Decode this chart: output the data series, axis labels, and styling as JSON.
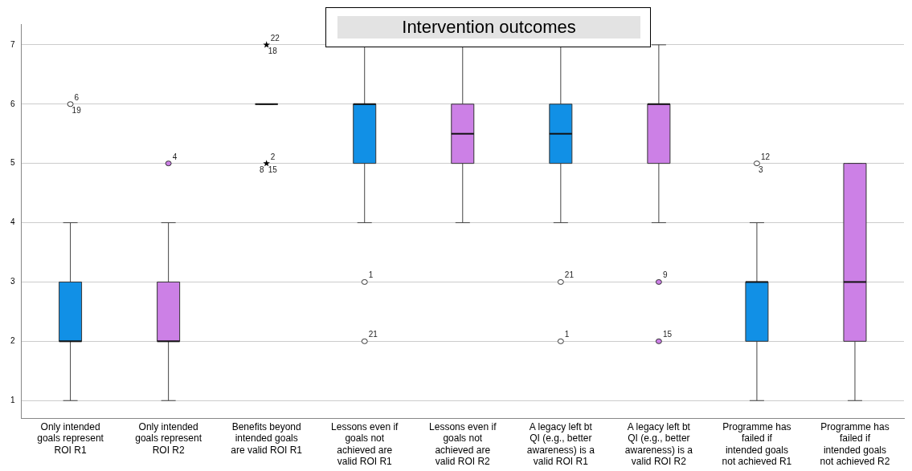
{
  "chart_data": {
    "type": "box",
    "title": "Intervention outcomes",
    "categories": [
      "Only intended goals represent ROI R1",
      "Only intended goals represent ROI R2",
      "Benefits beyond intended goals are valid ROI R1",
      "Lessons even if goals not achieved are valid ROI R1",
      "Lessons even if goals not achieved are valid ROI R2",
      "A legacy left bt QI (e.g., better awareness) is a valid ROI R1",
      "A legacy left bt QI (e.g., better awareness) is a valid ROI R2",
      "Programme has failed if intended goals not achieved R1",
      "Programme has failed if intended goals not achieved R2"
    ],
    "colors": [
      "#1190e6",
      "#cc80e6",
      null,
      "#1190e6",
      "#cc80e6",
      "#1190e6",
      "#cc80e6",
      "#1190e6",
      "#cc80e6"
    ],
    "boxes": [
      {
        "low": 1,
        "q1": 2,
        "median": 2,
        "q3": 3,
        "high": 4
      },
      {
        "low": 1,
        "q1": 2,
        "median": 2,
        "q3": 3,
        "high": 4
      },
      {
        "low": 6,
        "q1": 6,
        "median": 6,
        "q3": 6,
        "high": 6
      },
      {
        "low": 4,
        "q1": 5,
        "median": 6,
        "q3": 6,
        "high": 7
      },
      {
        "low": 4,
        "q1": 5,
        "median": 5.5,
        "q3": 6,
        "high": 7
      },
      {
        "low": 4,
        "q1": 5,
        "median": 5.5,
        "q3": 6,
        "high": 7
      },
      {
        "low": 4,
        "q1": 5,
        "median": 6,
        "q3": 6,
        "high": 7
      },
      {
        "low": 1,
        "q1": 2,
        "median": 3,
        "q3": 3,
        "high": 4
      },
      {
        "low": 1,
        "q1": 2,
        "median": 3,
        "q3": 5,
        "high": 5
      }
    ],
    "series": [
      {
        "type": "scatter",
        "marker": "circle",
        "color": "#ffffff",
        "x": [
          "Only intended goals represent ROI R1",
          "Lessons even if goals not achieved are valid ROI R1",
          "Lessons even if goals not achieved are valid ROI R1",
          "A legacy left bt QI (e.g., better awareness) is a valid ROI R1",
          "A legacy left bt QI (e.g., better awareness) is a valid ROI R1",
          "Programme has failed if intended goals not achieved R1"
        ],
        "values": [
          6,
          3,
          2,
          3,
          2,
          5
        ]
      },
      {
        "type": "scatter",
        "marker": "circle",
        "color": "#cc80e6",
        "x": [
          "Only intended goals represent ROI R2",
          "A legacy left bt QI (e.g., better awareness) is a valid ROI R2",
          "A legacy left bt QI (e.g., better awareness) is a valid ROI R2"
        ],
        "values": [
          5,
          3,
          2
        ]
      },
      {
        "type": "scatter",
        "marker": "star",
        "color": "#000000",
        "x": [
          "Benefits beyond intended goals are valid ROI R1",
          "Benefits beyond intended goals are valid ROI R1"
        ],
        "values": [
          7,
          5
        ]
      }
    ],
    "ylim": [
      0.7,
      7.35
    ],
    "yticks": [
      1,
      2,
      3,
      4,
      5,
      6,
      7
    ],
    "grid": "y",
    "annotations": [
      {
        "text": "6",
        "x": "Only intended goals represent ROI R1",
        "y": 6
      },
      {
        "text": "19",
        "x": "Only intended goals represent ROI R1",
        "y": 6
      },
      {
        "text": "4",
        "x": "Only intended goals represent ROI R2",
        "y": 5
      },
      {
        "text": "22",
        "x": "Benefits beyond intended goals are valid ROI R1",
        "y": 7
      },
      {
        "text": "18",
        "x": "Benefits beyond intended goals are valid ROI R1",
        "y": 7
      },
      {
        "text": "2",
        "x": "Benefits beyond intended goals are valid ROI R1",
        "y": 5
      },
      {
        "text": "15",
        "x": "Benefits beyond intended goals are valid ROI R1",
        "y": 5
      },
      {
        "text": "8",
        "x": "Benefits beyond intended goals are valid ROI R1",
        "y": 5
      },
      {
        "text": "1",
        "x": "Lessons even if goals not achieved are valid ROI R1",
        "y": 3
      },
      {
        "text": "21",
        "x": "Lessons even if goals not achieved are valid ROI R1",
        "y": 2
      },
      {
        "text": "21",
        "x": "A legacy left bt QI (e.g., better awareness) is a valid ROI R1",
        "y": 3
      },
      {
        "text": "1",
        "x": "A legacy left bt QI (e.g., better awareness) is a valid ROI R1",
        "y": 2
      },
      {
        "text": "9",
        "x": "A legacy left bt QI (e.g., better awareness) is a valid ROI R2",
        "y": 3
      },
      {
        "text": "15",
        "x": "A legacy left bt QI (e.g., better awareness) is a valid ROI R2",
        "y": 2
      },
      {
        "text": "12",
        "x": "Programme has failed if intended goals not achieved R1",
        "y": 5
      },
      {
        "text": "3",
        "x": "Programme has failed if intended goals not achieved R1",
        "y": 5
      }
    ]
  }
}
